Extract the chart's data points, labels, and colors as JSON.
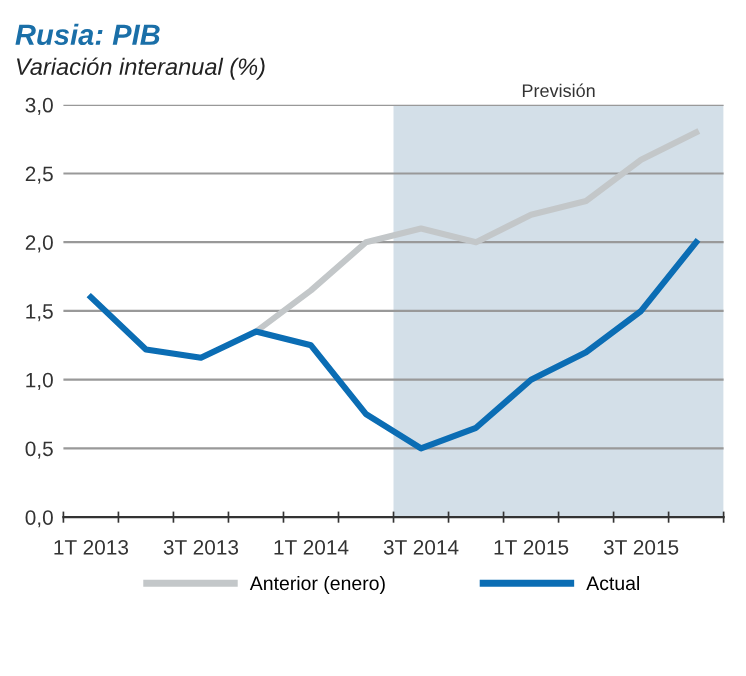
{
  "chart_data": {
    "type": "line",
    "title": "Rusia: PIB",
    "subtitle": "Variación interanual (%)",
    "categories": [
      "1T 2013",
      null,
      "3T 2013",
      null,
      "1T 2014",
      null,
      "3T 2014",
      null,
      "1T 2015",
      null,
      "3T 2015",
      null
    ],
    "series": [
      {
        "name": "Anterior (enero)",
        "color": "#c3c7c9",
        "values": [
          null,
          null,
          null,
          1.35,
          1.65,
          2.0,
          2.1,
          2.0,
          2.2,
          2.3,
          2.6,
          2.8
        ]
      },
      {
        "name": "Actual",
        "color": "#0b6db4",
        "values": [
          1.6,
          1.22,
          1.16,
          1.35,
          1.25,
          0.75,
          0.5,
          0.65,
          1.0,
          1.2,
          1.5,
          2.0
        ]
      }
    ],
    "annotations": [
      "Previsión"
    ],
    "ylim": [
      0,
      3
    ],
    "yticks": [
      {
        "value": 0,
        "label": "0,0"
      },
      {
        "value": 0.5,
        "label": "0,5"
      },
      {
        "value": 1,
        "label": "1,0"
      },
      {
        "value": 1.5,
        "label": "1,5"
      },
      {
        "value": 2,
        "label": "2,0"
      },
      {
        "value": 2.5,
        "label": "2,5"
      },
      {
        "value": 3,
        "label": "3,0"
      }
    ],
    "grid": "y",
    "legend": "bottom",
    "marker": "none",
    "line_style": "solid"
  }
}
